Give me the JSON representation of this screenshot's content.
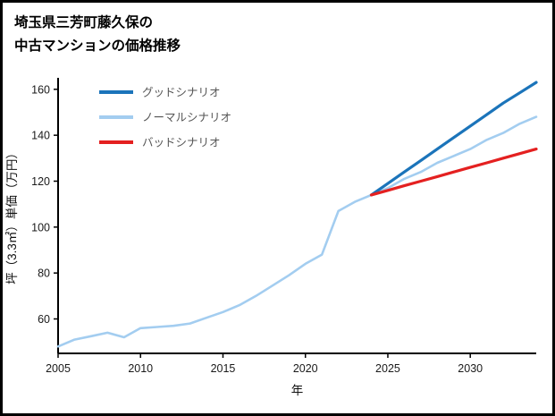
{
  "title": {
    "line1": "埼玉県三芳町藤久保の",
    "line2": "中古マンションの価格推移"
  },
  "chart_data": {
    "type": "line",
    "title": "埼玉県三芳町藤久保の中古マンションの価格推移",
    "xlabel": "年",
    "ylabel": "坪（3.3㎡）単価（万円）",
    "xlim": [
      2005,
      2034
    ],
    "ylim": [
      45,
      165
    ],
    "xticks": [
      2005,
      2010,
      2015,
      2020,
      2025,
      2030
    ],
    "yticks": [
      60,
      80,
      100,
      120,
      140,
      160
    ],
    "grid": false,
    "legend_position": "top-left",
    "series": [
      {
        "id": "good",
        "name": "グッドシナリオ",
        "color": "#1b74ba",
        "width": 3.2,
        "in_legend": true,
        "x": [
          2024,
          2025,
          2026,
          2027,
          2028,
          2029,
          2030,
          2031,
          2032,
          2033,
          2034
        ],
        "values": [
          114,
          119,
          124,
          129,
          134,
          139,
          144,
          149,
          154,
          158.5,
          163
        ]
      },
      {
        "id": "normal",
        "name": "ノーマルシナリオ",
        "color": "#a3cdf0",
        "width": 2.6,
        "in_legend": true,
        "x": [
          2005,
          2006,
          2007,
          2008,
          2009,
          2010,
          2011,
          2012,
          2013,
          2014,
          2015,
          2016,
          2017,
          2018,
          2019,
          2020,
          2021,
          2022,
          2023,
          2024,
          2025,
          2026,
          2027,
          2028,
          2029,
          2030,
          2031,
          2032,
          2033,
          2034
        ],
        "values": [
          48,
          51,
          52.5,
          54,
          52,
          56,
          56.5,
          57,
          58,
          60.5,
          63,
          66,
          70,
          74.5,
          79,
          84,
          88,
          107,
          111,
          114,
          117,
          121,
          124,
          128,
          131,
          134,
          138,
          141,
          145,
          148
        ]
      },
      {
        "id": "bad",
        "name": "バッドシナリオ",
        "color": "#e42020",
        "width": 3.2,
        "in_legend": true,
        "x": [
          2024,
          2025,
          2026,
          2027,
          2028,
          2029,
          2030,
          2031,
          2032,
          2033,
          2034
        ],
        "values": [
          114,
          116,
          118,
          120,
          122,
          124,
          126,
          128,
          130,
          132,
          134
        ]
      }
    ]
  }
}
